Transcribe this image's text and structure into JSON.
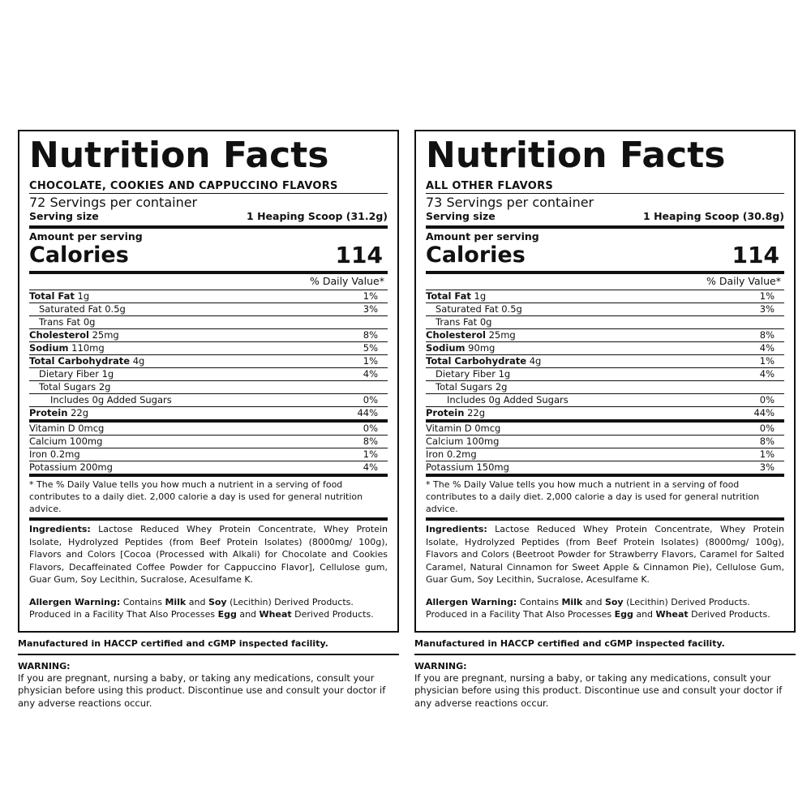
{
  "panels": [
    {
      "title": "Nutrition Facts",
      "flavors": "CHOCOLATE, COOKIES  AND CAPPUCCINO FLAVORS",
      "servings": "72 Servings per container",
      "serving_size_label": "Serving size",
      "serving_size_value": "1 Heaping Scoop (31.2g)",
      "amount_label": "Amount per serving",
      "calories_label": "Calories",
      "calories_value": "114",
      "dv_header": "% Daily Value*",
      "nutrients": [
        {
          "bold": "Total Fat",
          "rest": " 1g",
          "pct": "1%"
        },
        {
          "bold": "",
          "rest": "Saturated Fat 0.5g",
          "pct": "3%"
        },
        {
          "bold": "",
          "rest": "Trans Fat 0g",
          "pct": ""
        },
        {
          "bold": "Cholesterol",
          "rest": " 25mg",
          "pct": "8%"
        },
        {
          "bold": "Sodium",
          "rest": " 110mg",
          "pct": "5%"
        },
        {
          "bold": "Total Carbohydrate",
          "rest": " 4g",
          "pct": "1%"
        },
        {
          "bold": "",
          "rest": "Dietary Fiber 1g",
          "pct": "4%"
        },
        {
          "bold": "",
          "rest": "Total Sugars 2g",
          "pct": ""
        },
        {
          "bold": "",
          "rest": "Includes 0g Added Sugars",
          "pct": "0%"
        },
        {
          "bold": "Protein",
          "rest": " 22g",
          "pct": "44%"
        }
      ],
      "vitamins": [
        {
          "text": "Vitamin D 0mcg",
          "pct": "0%"
        },
        {
          "text": "Calcium 100mg",
          "pct": "8%"
        },
        {
          "text": "Iron 0.2mg",
          "pct": "1%"
        },
        {
          "text": "Potassium 200mg",
          "pct": "4%"
        }
      ],
      "footnote": "* The % Daily Value tells you how much a nutrient in a serving of food contributes to a daily diet. 2,000 calorie a day is used for general nutrition advice.",
      "ingredients_label": "Ingredients:",
      "ingredients_text": " Lactose Reduced Whey Protein Concentrate, Whey Protein Isolate, Hydrolyzed Peptides (from Beef Protein Isolates) (8000mg/ 100g), Flavors and Colors [Cocoa (Processed with Alkali) for Chocolate and Cookies Flavors, Decaffeinated Coffee Powder for Cappuccino Flavor], Cellulose gum, Guar Gum, Soy Lecithin, Sucralose, Acesulfame K.",
      "allergen_label": "Allergen Warning:",
      "allergen_1": " Contains ",
      "allergen_milk": "Milk",
      "allergen_2": " and ",
      "allergen_soy": "Soy",
      "allergen_3": " (Lecithin) Derived Products.",
      "allergen_line2_1": "Produced in a Facility That Also Processes ",
      "allergen_egg": "Egg",
      "allergen_line2_2": " and ",
      "allergen_wheat": "Wheat",
      "allergen_line2_3": " Derived Products.",
      "manufactured": "Manufactured in HACCP certified and cGMP inspected facility.",
      "warning_title": "WARNING:",
      "warning_text": "If you are pregnant, nursing a baby, or taking any medications, consult your physician before using this product. Discontinue use and consult your doctor if any adverse reactions occur."
    },
    {
      "title": "Nutrition Facts",
      "flavors": "ALL OTHER FLAVORS",
      "servings": "73 Servings per container",
      "serving_size_label": "Serving size",
      "serving_size_value": "1 Heaping Scoop (30.8g)",
      "amount_label": "Amount per serving",
      "calories_label": "Calories",
      "calories_value": "114",
      "dv_header": "% Daily Value*",
      "nutrients": [
        {
          "bold": "Total Fat",
          "rest": " 1g",
          "pct": "1%"
        },
        {
          "bold": "",
          "rest": "Saturated Fat 0.5g",
          "pct": "3%"
        },
        {
          "bold": "",
          "rest": "Trans Fat 0g",
          "pct": ""
        },
        {
          "bold": "Cholesterol",
          "rest": " 25mg",
          "pct": "8%"
        },
        {
          "bold": "Sodium",
          "rest": " 90mg",
          "pct": "4%"
        },
        {
          "bold": "Total Carbohydrate",
          "rest": " 4g",
          "pct": "1%"
        },
        {
          "bold": "",
          "rest": "Dietary Fiber 1g",
          "pct": "4%"
        },
        {
          "bold": "",
          "rest": "Total Sugars 2g",
          "pct": ""
        },
        {
          "bold": "",
          "rest": "Includes 0g Added Sugars",
          "pct": "0%"
        },
        {
          "bold": "Protein",
          "rest": " 22g",
          "pct": "44%"
        }
      ],
      "vitamins": [
        {
          "text": "Vitamin D 0mcg",
          "pct": "0%"
        },
        {
          "text": "Calcium 100mg",
          "pct": "8%"
        },
        {
          "text": "Iron 0.2mg",
          "pct": "1%"
        },
        {
          "text": "Potassium 150mg",
          "pct": "3%"
        }
      ],
      "footnote": "* The % Daily Value tells you how much a nutrient in a serving of food contributes to a daily diet. 2,000 calorie a day is used for general nutrition advice.",
      "ingredients_label": "Ingredients:",
      "ingredients_text": " Lactose Reduced Whey Protein Concentrate, Whey Protein Isolate, Hydrolyzed Peptides (from Beef Protein Isolates) (8000mg/ 100g), Flavors and Colors (Beetroot Powder for Strawberry Flavors, Caramel for Salted Caramel, Natural Cinnamon for Sweet Apple & Cinnamon Pie), Cellulose Gum, Guar Gum, Soy Lecithin, Sucralose, Acesulfame K.",
      "allergen_label": "Allergen Warning:",
      "allergen_1": " Contains ",
      "allergen_milk": "Milk",
      "allergen_2": " and ",
      "allergen_soy": "Soy",
      "allergen_3": " (Lecithin) Derived Products.",
      "allergen_line2_1": "Produced in a Facility That Also Processes ",
      "allergen_egg": "Egg",
      "allergen_line2_2": " and ",
      "allergen_wheat": "Wheat",
      "allergen_line2_3": " Derived Products.",
      "manufactured": "Manufactured in HACCP certified and cGMP inspected facility.",
      "warning_title": "WARNING:",
      "warning_text": "If you are pregnant, nursing a baby, or taking any medications, consult your physician before using this product. Discontinue use and consult your doctor if any adverse reactions occur."
    }
  ]
}
